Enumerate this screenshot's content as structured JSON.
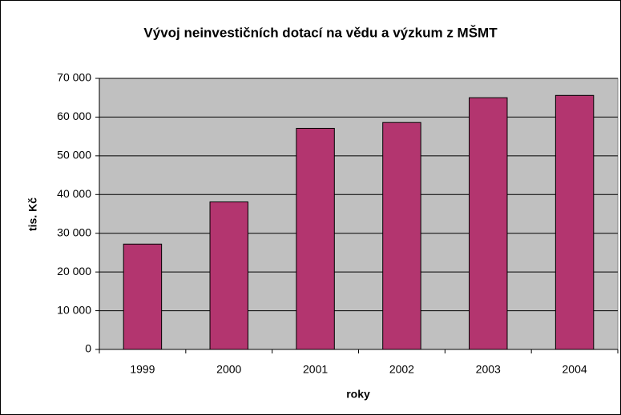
{
  "chart_data": {
    "type": "bar",
    "title": "Vývoj neinvestičních dotací na vědu a výzkum z MŠMT",
    "x_label": "roky",
    "y_label": "tis. Kč",
    "categories": [
      "1999",
      "2000",
      "2001",
      "2002",
      "2003",
      "2004"
    ],
    "values": [
      27200,
      38100,
      57100,
      58600,
      65000,
      65600
    ],
    "color": "#b3356f",
    "ylim": [
      0,
      70000
    ],
    "yticks": [
      0,
      {
        "value": 10000,
        "label": "10 000"
      },
      {
        "value": 20000,
        "label": "20 000"
      },
      {
        "value": 30000,
        "label": "30 000"
      },
      {
        "value": 40000,
        "label": "40 000"
      },
      {
        "value": 50000,
        "label": "50 000"
      },
      {
        "value": 60000,
        "label": "60 000"
      },
      {
        "value": 70000,
        "label": "70 000"
      }
    ],
    "grid": true
  }
}
